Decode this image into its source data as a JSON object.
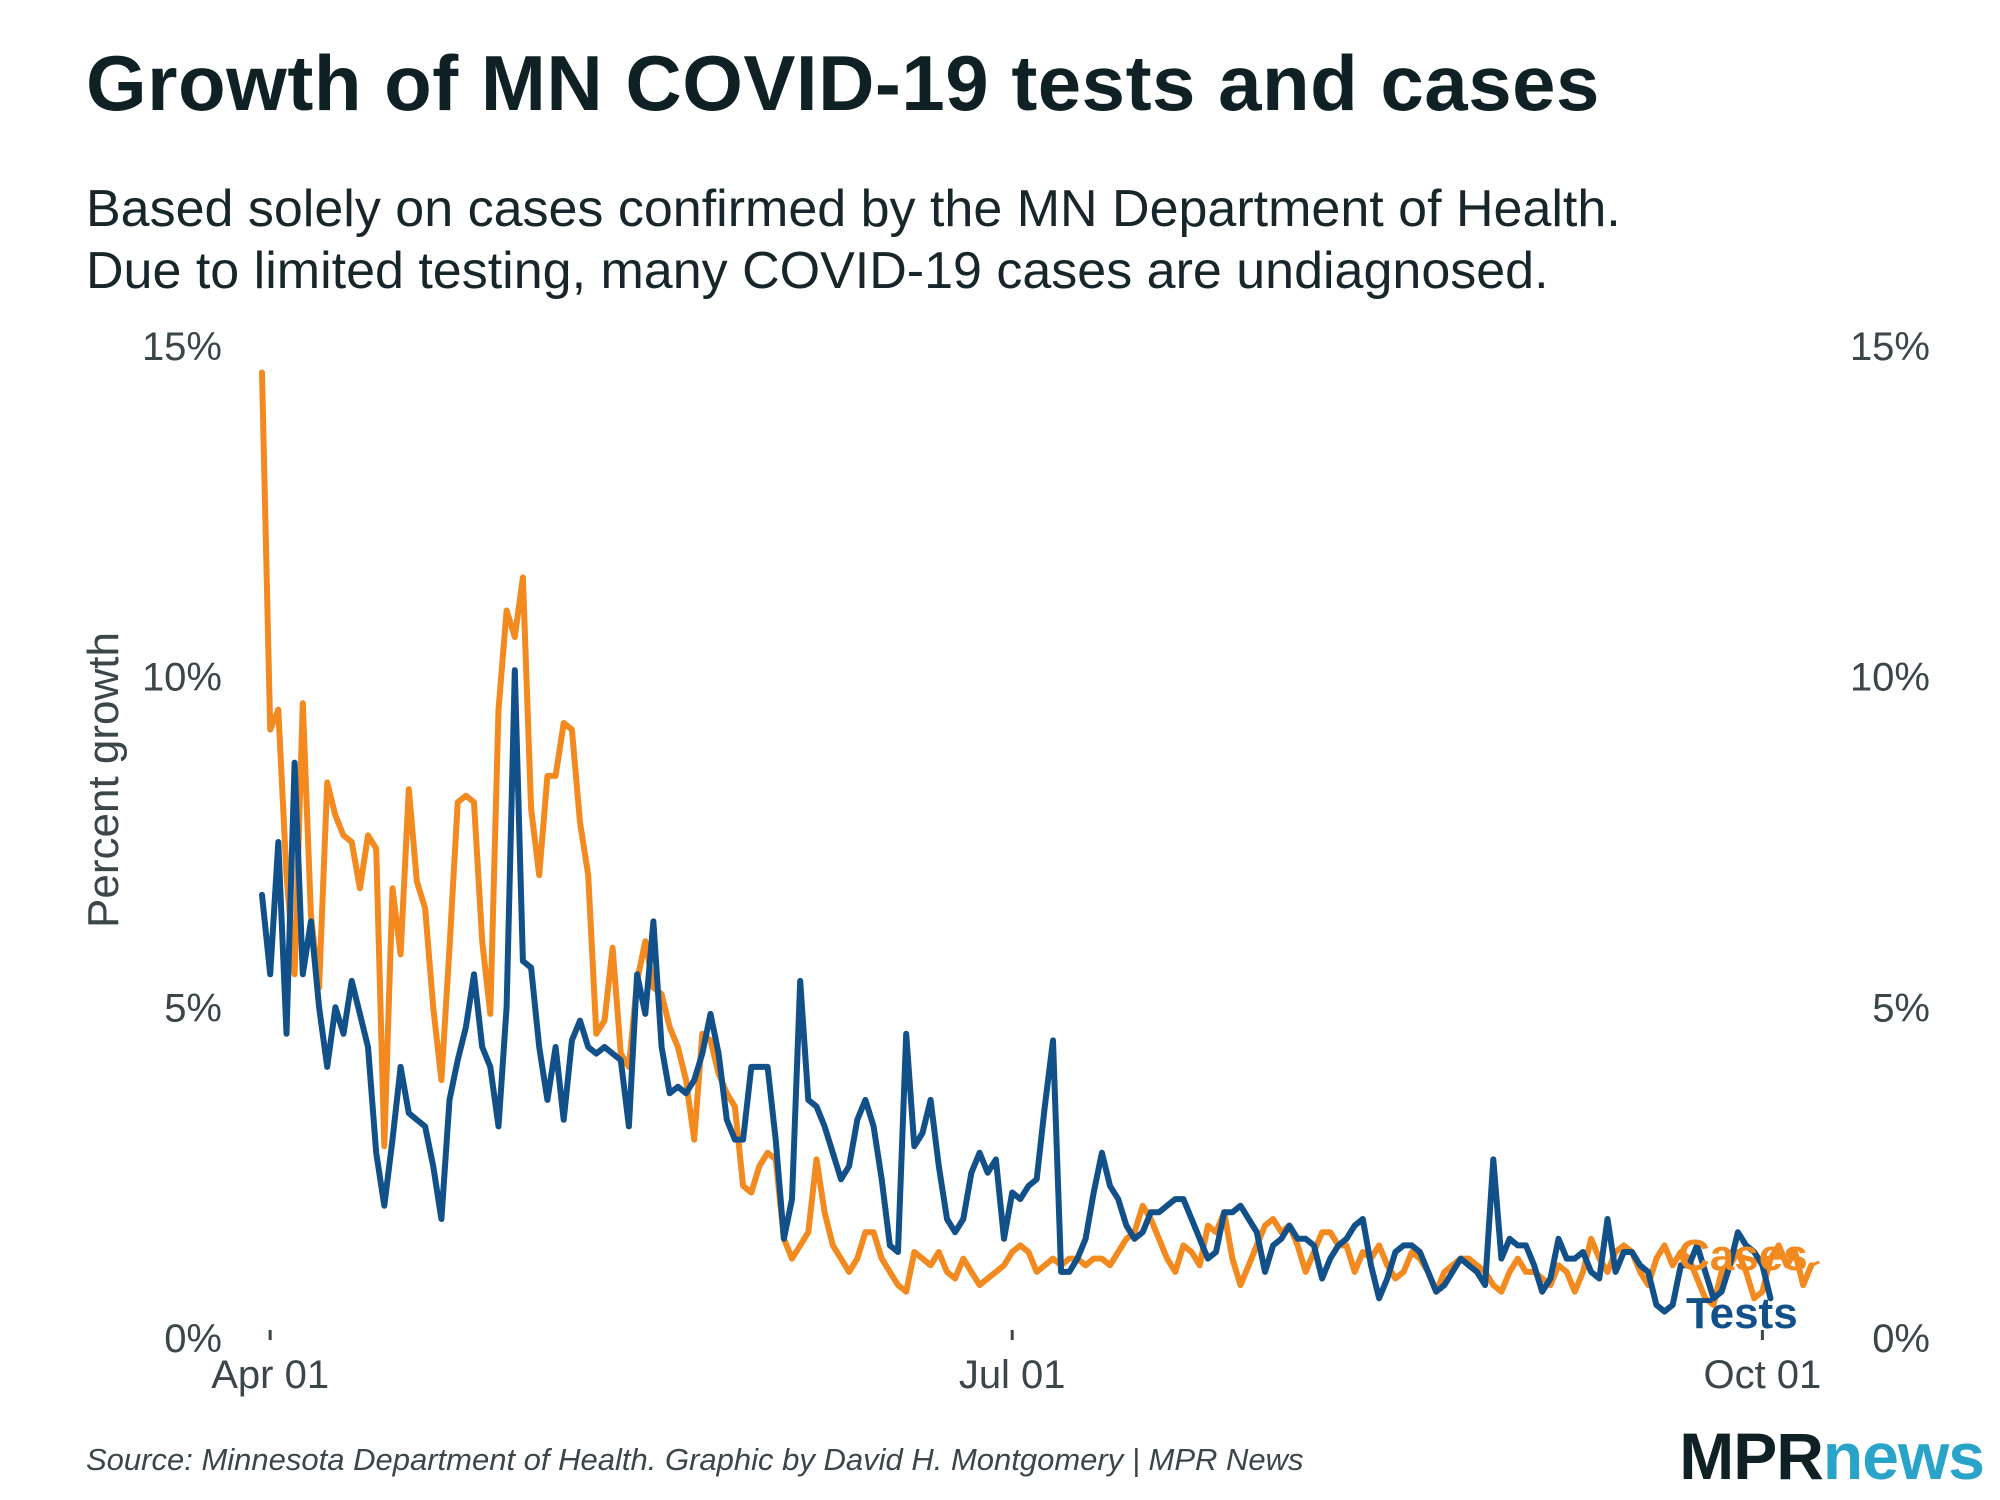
{
  "title": "Growth of MN COVID-19 tests and cases",
  "subtitle": [
    "Based solely on cases confirmed by the MN Department of Health.",
    "Due to limited testing, many COVID-19 cases are undiagnosed."
  ],
  "source": "Source: Minnesota Department of Health. Graphic by David H. Montgomery | MPR News",
  "logo": {
    "part1": "MPR",
    "part2": "news"
  },
  "colors": {
    "cases": "#f28a1f",
    "tests": "#12508a",
    "text": "#16262b",
    "logo_news": "#2aa3c9"
  },
  "chart_data": {
    "type": "line",
    "title": "Growth of MN COVID-19 tests and cases",
    "ylabel": "Percent growth",
    "xlabel": "",
    "ylim": [
      0,
      15
    ],
    "y_ticks": [
      0,
      5,
      10,
      15
    ],
    "y_tick_labels": [
      "0%",
      "5%",
      "10%",
      "15%"
    ],
    "x_range": [
      "2020-03-31",
      "2020-10-05"
    ],
    "x_ticks": [
      {
        "date": "2020-04-01",
        "label": "Apr 01"
      },
      {
        "date": "2020-07-01",
        "label": "Jul 01"
      },
      {
        "date": "2020-10-01",
        "label": "Oct 01"
      }
    ],
    "start_date": "2020-03-31",
    "series": [
      {
        "name": "Cases",
        "values": [
          14.6,
          9.2,
          9.5,
          7.0,
          5.5,
          9.6,
          6.4,
          5.3,
          8.4,
          7.9,
          7.6,
          7.5,
          6.8,
          7.6,
          7.4,
          2.9,
          6.8,
          5.8,
          8.3,
          6.9,
          6.5,
          5.0,
          3.9,
          5.9,
          8.1,
          8.2,
          8.1,
          6.0,
          4.9,
          9.5,
          11.0,
          10.6,
          11.5,
          8.0,
          7.0,
          8.5,
          8.5,
          9.3,
          9.2,
          7.8,
          7.0,
          4.6,
          4.8,
          5.9,
          4.3,
          4.1,
          5.4,
          6.0,
          5.3,
          5.2,
          4.7,
          4.4,
          3.9,
          3.0,
          4.6,
          4.5,
          4.0,
          3.7,
          3.5,
          2.3,
          2.2,
          2.6,
          2.8,
          2.7,
          1.5,
          1.2,
          1.4,
          1.6,
          2.7,
          1.9,
          1.4,
          1.2,
          1.0,
          1.2,
          1.6,
          1.6,
          1.2,
          1.0,
          0.8,
          0.7,
          1.3,
          1.2,
          1.1,
          1.3,
          1.0,
          0.9,
          1.2,
          1.0,
          0.8,
          0.9,
          1.0,
          1.1,
          1.3,
          1.4,
          1.3,
          1.0,
          1.1,
          1.2,
          1.1,
          1.2,
          1.2,
          1.1,
          1.2,
          1.2,
          1.1,
          1.3,
          1.5,
          1.6,
          2.0,
          1.8,
          1.5,
          1.2,
          1.0,
          1.4,
          1.3,
          1.1,
          1.7,
          1.6,
          1.9,
          1.2,
          0.8,
          1.1,
          1.4,
          1.7,
          1.8,
          1.6,
          1.7,
          1.4,
          1.0,
          1.3,
          1.6,
          1.6,
          1.4,
          1.4,
          1.0,
          1.3,
          1.2,
          1.4,
          1.1,
          0.9,
          1.0,
          1.3,
          1.2,
          1.0,
          0.7,
          1.0,
          1.1,
          1.2,
          1.2,
          1.1,
          1.0,
          0.8,
          0.7,
          1.0,
          1.2,
          1.0,
          1.0,
          0.9,
          0.8,
          1.1,
          1.0,
          0.7,
          1.0,
          1.5,
          1.2,
          1.0,
          1.3,
          1.4,
          1.3,
          1.0,
          0.8,
          1.2,
          1.4,
          1.1,
          1.3,
          1.2,
          0.9,
          0.6,
          0.5,
          1.0,
          1.1,
          1.3,
          1.0,
          0.6,
          0.7,
          1.2,
          1.4,
          1.1,
          1.3,
          0.8,
          1.1
        ]
      },
      {
        "name": "Tests",
        "values": [
          6.7,
          5.5,
          7.5,
          4.6,
          8.7,
          5.5,
          6.3,
          5.0,
          4.1,
          5.0,
          4.6,
          5.4,
          4.9,
          4.4,
          2.8,
          2.0,
          3.0,
          4.1,
          3.4,
          3.3,
          3.2,
          2.6,
          1.8,
          3.6,
          4.2,
          4.7,
          5.5,
          4.4,
          4.1,
          3.2,
          5.0,
          10.1,
          5.7,
          5.6,
          4.4,
          3.6,
          4.4,
          3.3,
          4.5,
          4.8,
          4.4,
          4.3,
          4.4,
          4.3,
          4.2,
          3.2,
          5.5,
          4.9,
          6.3,
          4.4,
          3.7,
          3.8,
          3.7,
          3.9,
          4.3,
          4.9,
          4.3,
          3.3,
          3.0,
          3.0,
          4.1,
          4.1,
          4.1,
          3.0,
          1.5,
          2.1,
          5.4,
          3.6,
          3.5,
          3.2,
          2.8,
          2.4,
          2.6,
          3.3,
          3.6,
          3.2,
          2.4,
          1.4,
          1.3,
          4.6,
          2.9,
          3.1,
          3.6,
          2.6,
          1.8,
          1.6,
          1.8,
          2.5,
          2.8,
          2.5,
          2.7,
          1.5,
          2.2,
          2.1,
          2.3,
          2.4,
          3.5,
          4.5,
          1.0,
          1.0,
          1.2,
          1.5,
          2.2,
          2.8,
          2.3,
          2.1,
          1.7,
          1.5,
          1.6,
          1.9,
          1.9,
          2.0,
          2.1,
          2.1,
          1.8,
          1.5,
          1.2,
          1.3,
          1.9,
          1.9,
          2.0,
          1.8,
          1.6,
          1.0,
          1.4,
          1.5,
          1.7,
          1.5,
          1.5,
          1.4,
          0.9,
          1.2,
          1.4,
          1.5,
          1.7,
          1.8,
          1.1,
          0.6,
          0.9,
          1.3,
          1.4,
          1.4,
          1.3,
          1.0,
          0.7,
          0.8,
          1.0,
          1.2,
          1.1,
          1.0,
          0.8,
          2.7,
          1.2,
          1.5,
          1.4,
          1.4,
          1.1,
          0.7,
          0.9,
          1.5,
          1.2,
          1.2,
          1.3,
          1.0,
          0.9,
          1.8,
          1.0,
          1.3,
          1.3,
          1.1,
          1.0,
          0.5,
          0.4,
          0.5,
          1.1,
          1.1,
          1.4,
          1.0,
          0.6,
          0.7,
          1.1,
          1.6,
          1.4,
          1.3,
          1.1,
          0.6
        ]
      }
    ],
    "series_labels": [
      "Cases",
      "Tests"
    ]
  }
}
